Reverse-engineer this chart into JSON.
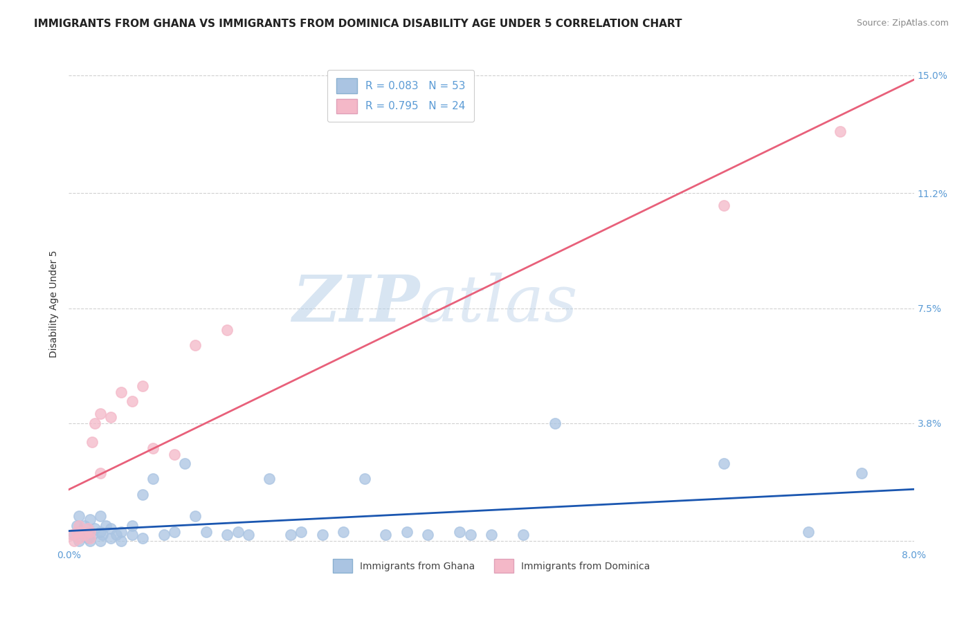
{
  "title": "IMMIGRANTS FROM GHANA VS IMMIGRANTS FROM DOMINICA DISABILITY AGE UNDER 5 CORRELATION CHART",
  "source": "Source: ZipAtlas.com",
  "ylabel": "Disability Age Under 5",
  "xlim": [
    0.0,
    0.08
  ],
  "ylim": [
    -0.002,
    0.155
  ],
  "xticks": [
    0.0,
    0.02,
    0.04,
    0.06,
    0.08
  ],
  "xticklabels": [
    "0.0%",
    "",
    "",
    "",
    "8.0%"
  ],
  "yticks": [
    0.0,
    0.038,
    0.075,
    0.112,
    0.15
  ],
  "yticklabels": [
    "",
    "3.8%",
    "7.5%",
    "11.2%",
    "15.0%"
  ],
  "ghana_color": "#aac4e2",
  "dominica_color": "#f4b8c8",
  "ghana_line_color": "#1a56b0",
  "dominica_line_color": "#e8607a",
  "ghana_R": 0.083,
  "ghana_N": 53,
  "dominica_R": 0.795,
  "dominica_N": 24,
  "ghana_scatter_x": [
    0.0005,
    0.0008,
    0.001,
    0.001,
    0.001,
    0.0015,
    0.0015,
    0.0018,
    0.002,
    0.002,
    0.002,
    0.0022,
    0.0025,
    0.003,
    0.003,
    0.003,
    0.0032,
    0.0035,
    0.004,
    0.004,
    0.0045,
    0.005,
    0.005,
    0.006,
    0.006,
    0.007,
    0.007,
    0.008,
    0.009,
    0.01,
    0.011,
    0.012,
    0.013,
    0.015,
    0.016,
    0.017,
    0.019,
    0.021,
    0.022,
    0.024,
    0.026,
    0.028,
    0.03,
    0.032,
    0.034,
    0.037,
    0.038,
    0.04,
    0.043,
    0.046,
    0.062,
    0.07,
    0.075
  ],
  "ghana_scatter_y": [
    0.002,
    0.005,
    0.0,
    0.003,
    0.008,
    0.002,
    0.005,
    0.001,
    0.0,
    0.003,
    0.007,
    0.002,
    0.004,
    0.0,
    0.003,
    0.008,
    0.002,
    0.005,
    0.001,
    0.004,
    0.002,
    0.0,
    0.003,
    0.002,
    0.005,
    0.001,
    0.015,
    0.02,
    0.002,
    0.003,
    0.025,
    0.008,
    0.003,
    0.002,
    0.003,
    0.002,
    0.02,
    0.002,
    0.003,
    0.002,
    0.003,
    0.02,
    0.002,
    0.003,
    0.002,
    0.003,
    0.002,
    0.002,
    0.002,
    0.038,
    0.025,
    0.003,
    0.022
  ],
  "dominica_scatter_x": [
    0.0003,
    0.0005,
    0.0008,
    0.001,
    0.001,
    0.0012,
    0.0015,
    0.0018,
    0.002,
    0.002,
    0.0022,
    0.0025,
    0.003,
    0.003,
    0.004,
    0.005,
    0.006,
    0.007,
    0.008,
    0.01,
    0.012,
    0.015,
    0.062,
    0.073
  ],
  "dominica_scatter_y": [
    0.002,
    0.0,
    0.003,
    0.001,
    0.005,
    0.003,
    0.002,
    0.004,
    0.001,
    0.003,
    0.032,
    0.038,
    0.022,
    0.041,
    0.04,
    0.048,
    0.045,
    0.05,
    0.03,
    0.028,
    0.063,
    0.068,
    0.108,
    0.132
  ],
  "watermark_zip": "ZIP",
  "watermark_atlas": "atlas",
  "background_color": "#ffffff",
  "grid_color": "#d0d0d0",
  "tick_color": "#5b9bd5",
  "title_fontsize": 11,
  "axis_label_fontsize": 10,
  "tick_fontsize": 10,
  "legend_fontsize": 11,
  "source_fontsize": 9
}
